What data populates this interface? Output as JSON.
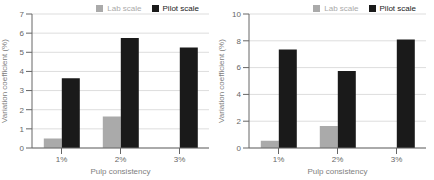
{
  "chart_data": [
    {
      "type": "bar",
      "categories": [
        "1%",
        "2%",
        "3%"
      ],
      "series": [
        {
          "name": "Lab scale",
          "color": "#aaaaaa",
          "values": [
            0.5,
            1.65,
            0.0
          ]
        },
        {
          "name": "Pilot scale",
          "color": "#1a1a1a",
          "values": [
            3.65,
            5.75,
            5.25
          ]
        }
      ],
      "xlabel": "Pulp consistency",
      "ylabel": "Variation coefficient (%)",
      "ylim": [
        0,
        7
      ],
      "yticks": [
        0,
        1,
        2,
        3,
        4,
        5,
        6,
        7
      ],
      "grid": true,
      "legend": "upper right"
    },
    {
      "type": "bar",
      "categories": [
        "1%",
        "2%",
        "3%"
      ],
      "series": [
        {
          "name": "Lab scale",
          "color": "#aaaaaa",
          "values": [
            0.55,
            1.65,
            0.0
          ]
        },
        {
          "name": "Pilot scale",
          "color": "#1a1a1a",
          "values": [
            7.35,
            5.75,
            8.1
          ]
        }
      ],
      "xlabel": "Pulp consistency",
      "ylabel": "Variation coefficient (%)",
      "ylim": [
        0,
        10
      ],
      "yticks": [
        0,
        2,
        4,
        6,
        8,
        10
      ],
      "grid": true,
      "legend": "upper right"
    }
  ]
}
